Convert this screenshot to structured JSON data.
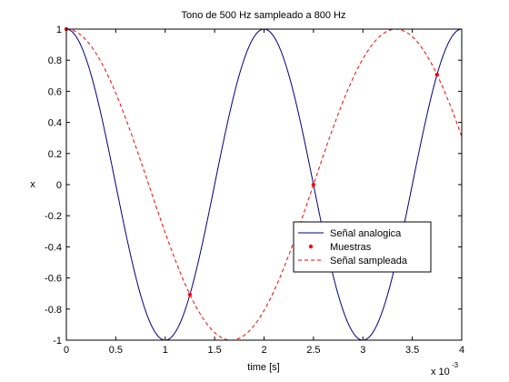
{
  "chart_data": {
    "type": "line",
    "title": "Tono de 500 Hz sampleado a 800 Hz",
    "xlabel": "time [s]",
    "ylabel": "x",
    "x_multiplier": "x 10",
    "x_exponent": "-3",
    "xlim": [
      0,
      4
    ],
    "ylim": [
      -1,
      1
    ],
    "x_ticks": [
      0,
      0.5,
      1,
      1.5,
      2,
      2.5,
      3,
      3.5,
      4
    ],
    "x_tick_labels": [
      "0",
      "0.5",
      "1",
      "1.5",
      "2",
      "2.5",
      "3",
      "3.5",
      "4"
    ],
    "y_ticks": [
      -1,
      -0.8,
      -0.6,
      -0.4,
      -0.2,
      0,
      0.2,
      0.4,
      0.6,
      0.8,
      1
    ],
    "y_tick_labels": [
      "-1",
      "-0.8",
      "-0.6",
      "-0.4",
      "-0.2",
      "0",
      "0.2",
      "0.4",
      "0.6",
      "0.8",
      "1"
    ],
    "grid": false,
    "legend_position": "right",
    "series": [
      {
        "name": "Señal analogica",
        "style": "solid",
        "color": "#00007f",
        "marker": "none",
        "function": "cos",
        "frequency_hz": 500
      },
      {
        "name": "Muestras",
        "style": "none",
        "color": "#ff0000",
        "marker": "dot",
        "x": [
          0,
          1.25,
          2.5,
          3.75
        ],
        "y": [
          1,
          -0.707,
          0,
          0.707
        ]
      },
      {
        "name": "Señal sampleada",
        "style": "dashed",
        "color": "#ff0000",
        "marker": "none",
        "function": "cos",
        "frequency_hz": 300
      }
    ]
  }
}
